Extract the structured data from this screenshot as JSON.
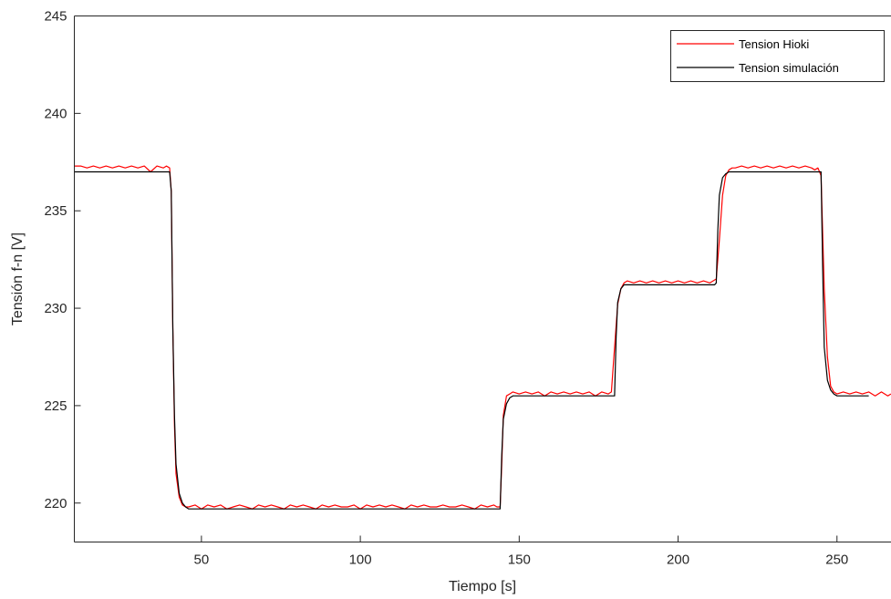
{
  "chart_data": {
    "type": "line",
    "xlabel": "Tiempo [s]",
    "ylabel": "Tensión f-n [V]",
    "xlim": [
      10,
      267
    ],
    "ylim": [
      218,
      245
    ],
    "xticks": [
      "50",
      "100",
      "150",
      "200",
      "250"
    ],
    "yticks": [
      "220",
      "225",
      "230",
      "235",
      "240",
      "245"
    ],
    "grid": false,
    "legend_position": "top-right",
    "series": [
      {
        "name": "Tension Hioki",
        "color": "#ff0000",
        "x": [
          10,
          12,
          14,
          16,
          18,
          20,
          22,
          24,
          26,
          28,
          30,
          32,
          34,
          36,
          38,
          39,
          40,
          40.5,
          41,
          41.5,
          42,
          43,
          44,
          45,
          46,
          48,
          50,
          52,
          54,
          56,
          58,
          60,
          62,
          64,
          66,
          68,
          70,
          72,
          74,
          76,
          78,
          80,
          82,
          84,
          86,
          88,
          90,
          92,
          94,
          96,
          98,
          100,
          102,
          104,
          106,
          108,
          110,
          112,
          114,
          116,
          118,
          120,
          122,
          124,
          126,
          128,
          130,
          132,
          134,
          136,
          138,
          140,
          142,
          143,
          144,
          144.5,
          145,
          146,
          147,
          148,
          150,
          152,
          154,
          156,
          158,
          160,
          162,
          164,
          166,
          168,
          170,
          172,
          174,
          176,
          178,
          179,
          180,
          181,
          182,
          183,
          184,
          186,
          188,
          190,
          192,
          194,
          196,
          198,
          200,
          202,
          204,
          206,
          208,
          210,
          211,
          212,
          213,
          214,
          215,
          216,
          217,
          218,
          220,
          222,
          224,
          226,
          228,
          230,
          232,
          234,
          236,
          238,
          240,
          242,
          243,
          244,
          245,
          246,
          247,
          248,
          249,
          250,
          252,
          254,
          256,
          258,
          260,
          262,
          264,
          266,
          267
        ],
        "y": [
          237.3,
          237.3,
          237.2,
          237.3,
          237.2,
          237.3,
          237.2,
          237.3,
          237.2,
          237.3,
          237.2,
          237.3,
          237.0,
          237.3,
          237.2,
          237.3,
          237.2,
          236.0,
          229.0,
          224.0,
          221.5,
          220.3,
          219.9,
          219.8,
          219.8,
          219.9,
          219.7,
          219.9,
          219.8,
          219.9,
          219.7,
          219.8,
          219.9,
          219.8,
          219.7,
          219.9,
          219.8,
          219.9,
          219.8,
          219.7,
          219.9,
          219.8,
          219.9,
          219.8,
          219.7,
          219.9,
          219.8,
          219.9,
          219.8,
          219.8,
          219.9,
          219.7,
          219.9,
          219.8,
          219.9,
          219.8,
          219.9,
          219.8,
          219.7,
          219.9,
          219.8,
          219.9,
          219.8,
          219.8,
          219.9,
          219.8,
          219.8,
          219.9,
          219.8,
          219.7,
          219.9,
          219.8,
          219.9,
          219.8,
          219.8,
          222.0,
          224.5,
          225.5,
          225.6,
          225.7,
          225.6,
          225.7,
          225.6,
          225.7,
          225.5,
          225.7,
          225.6,
          225.7,
          225.6,
          225.7,
          225.6,
          225.7,
          225.5,
          225.7,
          225.6,
          225.7,
          228.0,
          230.2,
          231.0,
          231.3,
          231.4,
          231.3,
          231.4,
          231.3,
          231.4,
          231.3,
          231.4,
          231.3,
          231.4,
          231.3,
          231.4,
          231.3,
          231.4,
          231.3,
          231.4,
          231.5,
          233.5,
          235.8,
          236.8,
          237.1,
          237.2,
          237.2,
          237.3,
          237.2,
          237.3,
          237.2,
          237.3,
          237.2,
          237.3,
          237.2,
          237.3,
          237.2,
          237.3,
          237.2,
          237.1,
          237.2,
          236.8,
          231.0,
          227.5,
          226.0,
          225.7,
          225.6,
          225.7,
          225.6,
          225.7,
          225.6,
          225.7,
          225.5,
          225.7,
          225.5,
          225.6
        ]
      },
      {
        "name": "Tension simulación",
        "color": "#000000",
        "x": [
          10,
          20,
          30,
          38,
          40,
          40.5,
          41,
          41.5,
          42,
          43,
          44,
          45,
          46,
          50,
          100,
          143.5,
          144,
          144.5,
          145,
          146,
          147,
          148,
          150,
          179.5,
          180,
          180.5,
          181,
          182,
          183,
          184,
          200,
          211.5,
          212,
          212.5,
          213,
          214,
          215,
          216,
          218,
          244.5,
          245,
          245.5,
          246,
          247,
          248,
          249,
          250,
          260
        ],
        "y": [
          237.0,
          237.0,
          237.0,
          237.0,
          237.0,
          236.0,
          229.0,
          224.5,
          222.0,
          220.5,
          220.0,
          219.8,
          219.7,
          219.7,
          219.7,
          219.7,
          219.7,
          222.5,
          224.3,
          225.1,
          225.4,
          225.5,
          225.5,
          225.5,
          225.5,
          228.5,
          230.3,
          231.0,
          231.2,
          231.2,
          231.2,
          231.2,
          231.3,
          234.0,
          235.8,
          236.7,
          236.9,
          237.0,
          237.0,
          237.0,
          237.0,
          232.0,
          228.0,
          226.3,
          225.8,
          225.6,
          225.5,
          225.5
        ]
      }
    ]
  }
}
